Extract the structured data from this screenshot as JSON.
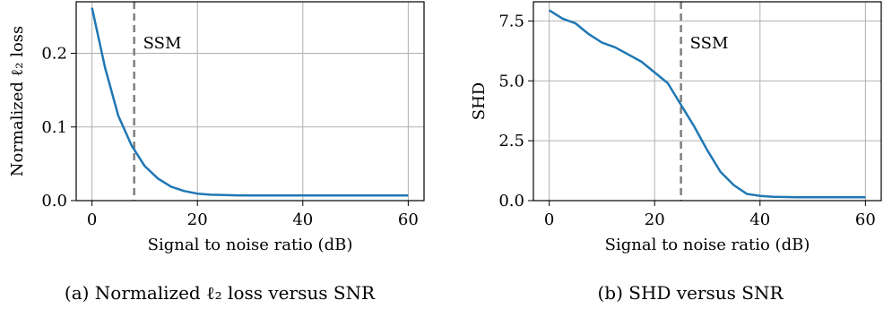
{
  "chart_data": [
    {
      "type": "line",
      "caption": "(a) Normalized ℓ₂ loss versus SNR",
      "xlabel": "Signal to noise ratio (dB)",
      "ylabel": "Normalized ℓ₂ loss",
      "xlim": [
        -3,
        63
      ],
      "ylim": [
        0,
        0.27
      ],
      "xticks": [
        0,
        20,
        40,
        60
      ],
      "xtick_labels": [
        "0",
        "20",
        "40",
        "60"
      ],
      "yticks": [
        0.0,
        0.1,
        0.2
      ],
      "ytick_labels": [
        "0.0",
        "0.1",
        "0.2"
      ],
      "grid": true,
      "line_color": "#1f77b4",
      "x": [
        0,
        2.5,
        5,
        7.5,
        10,
        12.5,
        15,
        17.5,
        20,
        22.5,
        25,
        27.5,
        30,
        32.5,
        35,
        37.5,
        40,
        42.5,
        45,
        47.5,
        50,
        52.5,
        55,
        57.5,
        60
      ],
      "values": [
        0.262,
        0.18,
        0.115,
        0.075,
        0.047,
        0.03,
        0.019,
        0.013,
        0.0095,
        0.008,
        0.0075,
        0.0072,
        0.007,
        0.007,
        0.007,
        0.007,
        0.007,
        0.007,
        0.007,
        0.007,
        0.007,
        0.007,
        0.007,
        0.007,
        0.007
      ],
      "vline": {
        "x": 8,
        "label": "SSM",
        "color": "#7f7f7f"
      }
    },
    {
      "type": "line",
      "caption": "(b) SHD versus SNR",
      "xlabel": "Signal to noise ratio (dB)",
      "ylabel": "SHD",
      "xlim": [
        -3,
        63
      ],
      "ylim": [
        0,
        8.3
      ],
      "xticks": [
        0,
        20,
        40,
        60
      ],
      "xtick_labels": [
        "0",
        "20",
        "40",
        "60"
      ],
      "yticks": [
        0.0,
        2.5,
        5.0,
        7.5
      ],
      "ytick_labels": [
        "0.0",
        "2.5",
        "5.0",
        "7.5"
      ],
      "grid": true,
      "line_color": "#1f77b4",
      "x": [
        0,
        2.5,
        5,
        7.5,
        10,
        12.5,
        15,
        17.5,
        20,
        22.5,
        25,
        27.5,
        30,
        32.5,
        35,
        37.5,
        40,
        42.5,
        45,
        47.5,
        50,
        52.5,
        55,
        57.5,
        60
      ],
      "values": [
        7.95,
        7.6,
        7.4,
        6.95,
        6.6,
        6.4,
        6.1,
        5.8,
        5.35,
        4.9,
        4.0,
        3.1,
        2.1,
        1.2,
        0.65,
        0.28,
        0.2,
        0.16,
        0.15,
        0.14,
        0.14,
        0.14,
        0.14,
        0.14,
        0.14
      ],
      "vline": {
        "x": 25,
        "label": "SSM",
        "color": "#7f7f7f"
      }
    }
  ]
}
